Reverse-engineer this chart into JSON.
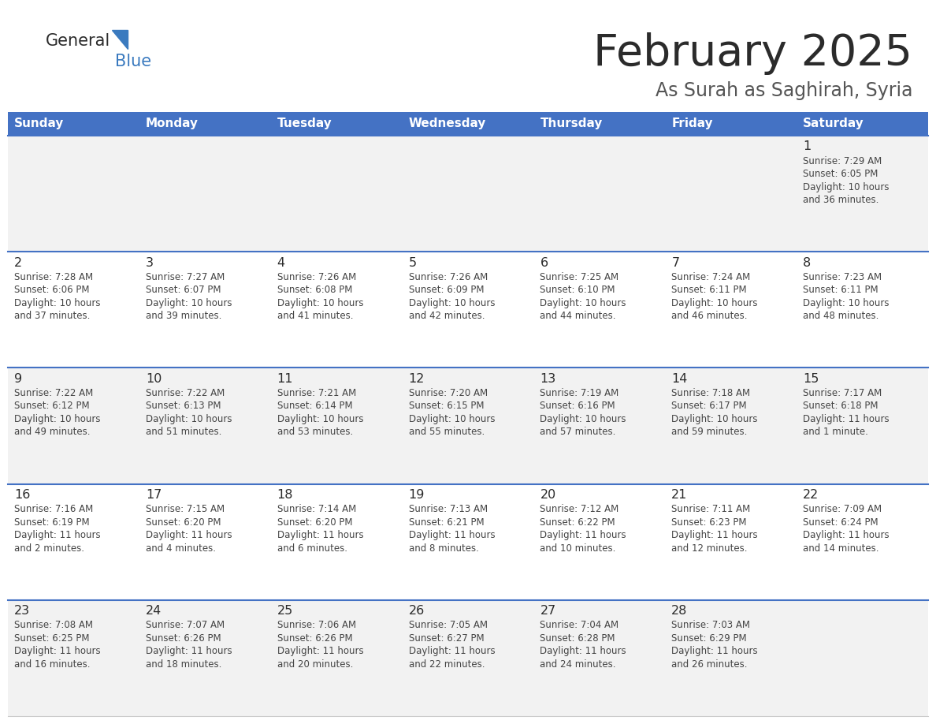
{
  "title": "February 2025",
  "subtitle": "As Surah as Saghirah, Syria",
  "header_color": "#4472C4",
  "header_text_color": "#FFFFFF",
  "days_of_week": [
    "Sunday",
    "Monday",
    "Tuesday",
    "Wednesday",
    "Thursday",
    "Friday",
    "Saturday"
  ],
  "background_color": "#FFFFFF",
  "cell_bg_even": "#F2F2F2",
  "cell_bg_odd": "#FFFFFF",
  "separator_color": "#4472C4",
  "title_color": "#2b2b2b",
  "subtitle_color": "#555555",
  "day_number_color": "#2b2b2b",
  "info_color": "#444444",
  "logo_general_color": "#2b2b2b",
  "logo_blue_color": "#3a7abf",
  "logo_triangle_color": "#3a7abf",
  "calendar": [
    [
      null,
      null,
      null,
      null,
      null,
      null,
      {
        "day": 1,
        "sunrise": "7:29 AM",
        "sunset": "6:05 PM",
        "daylight": "10 hours and 36 minutes."
      }
    ],
    [
      {
        "day": 2,
        "sunrise": "7:28 AM",
        "sunset": "6:06 PM",
        "daylight": "10 hours and 37 minutes."
      },
      {
        "day": 3,
        "sunrise": "7:27 AM",
        "sunset": "6:07 PM",
        "daylight": "10 hours and 39 minutes."
      },
      {
        "day": 4,
        "sunrise": "7:26 AM",
        "sunset": "6:08 PM",
        "daylight": "10 hours and 41 minutes."
      },
      {
        "day": 5,
        "sunrise": "7:26 AM",
        "sunset": "6:09 PM",
        "daylight": "10 hours and 42 minutes."
      },
      {
        "day": 6,
        "sunrise": "7:25 AM",
        "sunset": "6:10 PM",
        "daylight": "10 hours and 44 minutes."
      },
      {
        "day": 7,
        "sunrise": "7:24 AM",
        "sunset": "6:11 PM",
        "daylight": "10 hours and 46 minutes."
      },
      {
        "day": 8,
        "sunrise": "7:23 AM",
        "sunset": "6:11 PM",
        "daylight": "10 hours and 48 minutes."
      }
    ],
    [
      {
        "day": 9,
        "sunrise": "7:22 AM",
        "sunset": "6:12 PM",
        "daylight": "10 hours and 49 minutes."
      },
      {
        "day": 10,
        "sunrise": "7:22 AM",
        "sunset": "6:13 PM",
        "daylight": "10 hours and 51 minutes."
      },
      {
        "day": 11,
        "sunrise": "7:21 AM",
        "sunset": "6:14 PM",
        "daylight": "10 hours and 53 minutes."
      },
      {
        "day": 12,
        "sunrise": "7:20 AM",
        "sunset": "6:15 PM",
        "daylight": "10 hours and 55 minutes."
      },
      {
        "day": 13,
        "sunrise": "7:19 AM",
        "sunset": "6:16 PM",
        "daylight": "10 hours and 57 minutes."
      },
      {
        "day": 14,
        "sunrise": "7:18 AM",
        "sunset": "6:17 PM",
        "daylight": "10 hours and 59 minutes."
      },
      {
        "day": 15,
        "sunrise": "7:17 AM",
        "sunset": "6:18 PM",
        "daylight": "11 hours and 1 minute."
      }
    ],
    [
      {
        "day": 16,
        "sunrise": "7:16 AM",
        "sunset": "6:19 PM",
        "daylight": "11 hours and 2 minutes."
      },
      {
        "day": 17,
        "sunrise": "7:15 AM",
        "sunset": "6:20 PM",
        "daylight": "11 hours and 4 minutes."
      },
      {
        "day": 18,
        "sunrise": "7:14 AM",
        "sunset": "6:20 PM",
        "daylight": "11 hours and 6 minutes."
      },
      {
        "day": 19,
        "sunrise": "7:13 AM",
        "sunset": "6:21 PM",
        "daylight": "11 hours and 8 minutes."
      },
      {
        "day": 20,
        "sunrise": "7:12 AM",
        "sunset": "6:22 PM",
        "daylight": "11 hours and 10 minutes."
      },
      {
        "day": 21,
        "sunrise": "7:11 AM",
        "sunset": "6:23 PM",
        "daylight": "11 hours and 12 minutes."
      },
      {
        "day": 22,
        "sunrise": "7:09 AM",
        "sunset": "6:24 PM",
        "daylight": "11 hours and 14 minutes."
      }
    ],
    [
      {
        "day": 23,
        "sunrise": "7:08 AM",
        "sunset": "6:25 PM",
        "daylight": "11 hours and 16 minutes."
      },
      {
        "day": 24,
        "sunrise": "7:07 AM",
        "sunset": "6:26 PM",
        "daylight": "11 hours and 18 minutes."
      },
      {
        "day": 25,
        "sunrise": "7:06 AM",
        "sunset": "6:26 PM",
        "daylight": "11 hours and 20 minutes."
      },
      {
        "day": 26,
        "sunrise": "7:05 AM",
        "sunset": "6:27 PM",
        "daylight": "11 hours and 22 minutes."
      },
      {
        "day": 27,
        "sunrise": "7:04 AM",
        "sunset": "6:28 PM",
        "daylight": "11 hours and 24 minutes."
      },
      {
        "day": 28,
        "sunrise": "7:03 AM",
        "sunset": "6:29 PM",
        "daylight": "11 hours and 26 minutes."
      },
      null
    ]
  ],
  "figsize": [
    11.88,
    9.18
  ],
  "dpi": 100
}
